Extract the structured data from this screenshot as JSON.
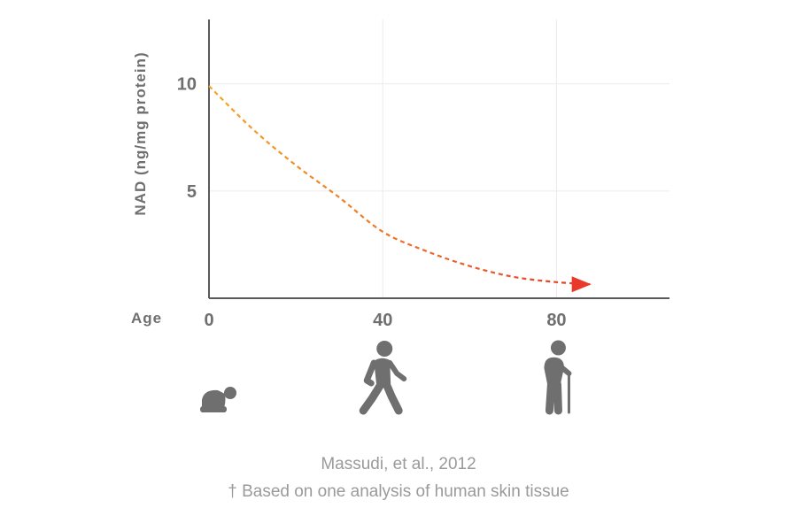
{
  "chart_data": {
    "type": "line",
    "ylabel": "NAD (ng/mg protein)",
    "xlabel": "Age",
    "x": [
      0,
      10,
      20,
      30,
      40,
      50,
      60,
      70,
      80,
      88
    ],
    "series": [
      {
        "values": [
          9.9,
          7.9,
          6.2,
          4.7,
          3.1,
          2.2,
          1.5,
          1.0,
          0.75,
          0.65
        ]
      }
    ],
    "xlim": [
      0,
      106
    ],
    "ylim": [
      0,
      13
    ],
    "xticks": [
      0,
      40,
      80
    ],
    "yticks": [
      5,
      10
    ],
    "xtick_labels": [
      "0",
      "40",
      "80"
    ],
    "ytick_labels": [
      "5",
      "10"
    ],
    "grid": true,
    "line_style": "dashed",
    "line_colors": [
      "#f5a623",
      "#e8392a"
    ],
    "arrow_end": true,
    "age_icons": [
      {
        "age": 0,
        "icon": "crawling-baby-icon"
      },
      {
        "age": 40,
        "icon": "walking-adult-icon"
      },
      {
        "age": 80,
        "icon": "elderly-with-cane-icon"
      }
    ]
  },
  "source": {
    "citation": "Massudi, et al., 2012",
    "footnote": "† Based on one analysis of human skin tissue"
  }
}
